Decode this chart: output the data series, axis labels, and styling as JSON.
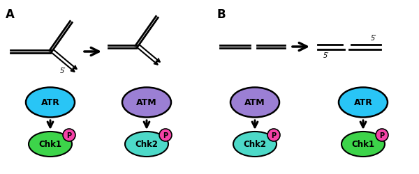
{
  "fig_width": 6.0,
  "fig_height": 2.51,
  "dpi": 100,
  "bg_color": "#ffffff",
  "atr_color": "#29c5f6",
  "atm_color": "#9b7fd4",
  "chk1_color": "#3dd44a",
  "chk2_color": "#4dd9c8",
  "p_color": "#f542a7",
  "label_A": "A",
  "label_B": "B",
  "label_ATR": "ATR",
  "label_ATM": "ATM",
  "label_Chk1": "Chk1",
  "label_Chk2": "Chk2",
  "label_P": "P",
  "label_5prime": "5′"
}
